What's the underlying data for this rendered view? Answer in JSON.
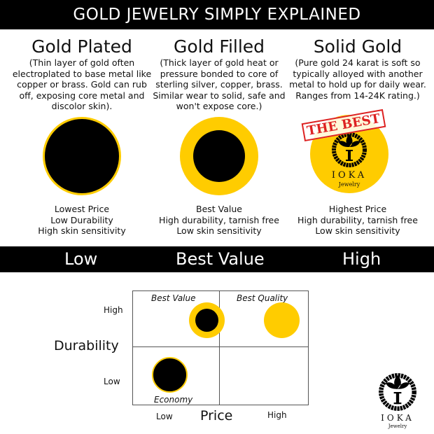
{
  "title": "GOLD JEWELRY SIMPLY EXPLAINED",
  "columns": [
    {
      "heading": "Gold Plated",
      "desc": "(Thin layer of gold often electroplated to base metal like copper or brass. Gold can rub off, exposing core metal and discolor skin).",
      "labels": [
        "Lowest Price",
        "Low Durability",
        "High skin sensitivity"
      ]
    },
    {
      "heading": "Gold Filled",
      "desc": "(Thick layer of gold heat or pressure bonded to core of sterling silver, copper, brass. Similar wear to solid, safe and won't expose core.)",
      "labels": [
        "Best Value",
        "High durability, tarnish free",
        "Low skin sensitivity"
      ]
    },
    {
      "heading": "Solid Gold",
      "desc": "(Pure gold 24 karat is soft so typically alloyed with another metal to hold up for daily wear. Ranges from 14-24K rating.)",
      "labels": [
        "Highest Price",
        "High durability, tarnish free",
        "Low skin sensitivity"
      ]
    }
  ],
  "stamp": "THE BEST",
  "logo": {
    "name": "IOKA",
    "sub": "Jewelry",
    "letter": "I"
  },
  "band": {
    "low": "Low",
    "mid": "Best Value",
    "high": "High"
  },
  "matrix": {
    "y_label": "Durability",
    "x_label": "Price",
    "y_ticks": [
      "High",
      "Low"
    ],
    "x_ticks": [
      "Low",
      "High"
    ],
    "quadrants": {
      "top_left": "Best Value",
      "top_right": "Best Quality",
      "bottom_left": "Economy"
    }
  },
  "colors": {
    "gold": "#FFCC00",
    "black": "#000000",
    "stamp": "#D22222"
  }
}
